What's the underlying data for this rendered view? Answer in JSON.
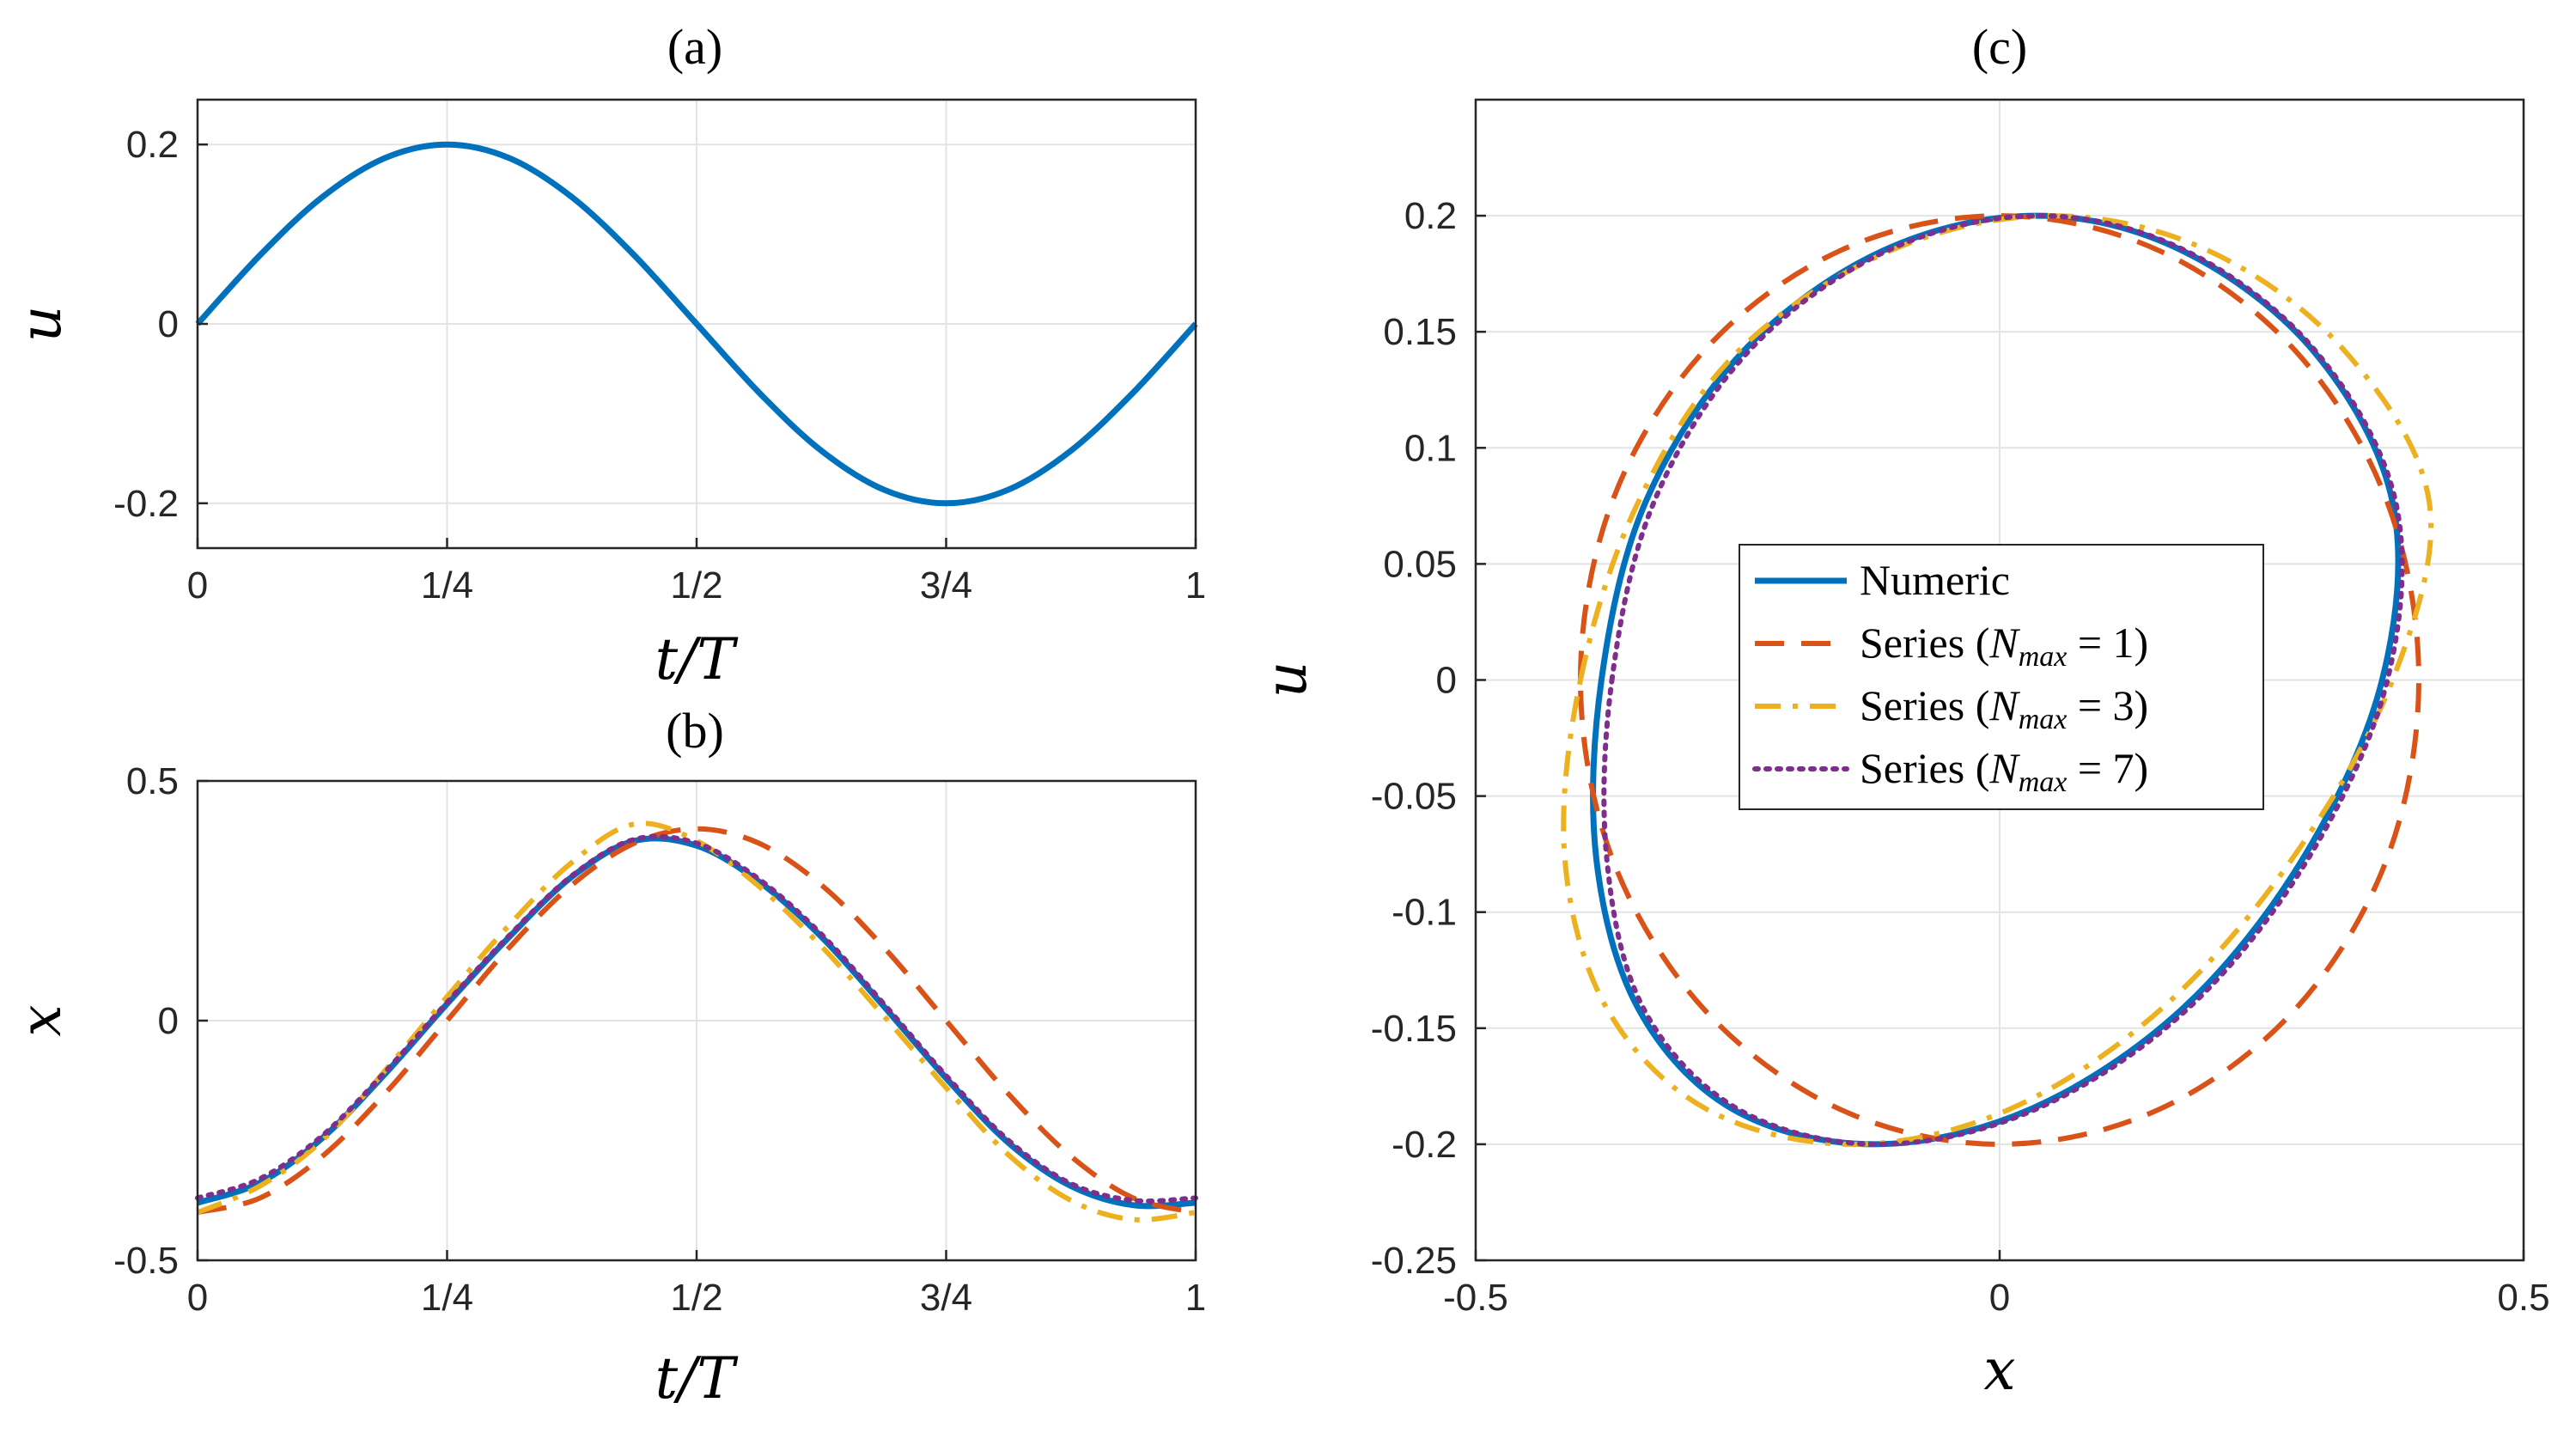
{
  "colors": {
    "numeric": "#0072BD",
    "series1": "#D95319",
    "series3": "#EDB120",
    "series7": "#7E2F8E",
    "grid": "#e3e3e3",
    "axes": "#262626"
  },
  "chart_data": [
    {
      "type": "line",
      "title": "(a)",
      "xlabel": "t/T",
      "ylabel": "u",
      "xlim": [
        0,
        1
      ],
      "ylim": [
        -0.25,
        0.25
      ],
      "grid": true,
      "xticks": [
        0,
        0.25,
        0.5,
        0.75,
        1
      ],
      "xtick_labels": [
        "0",
        "1/4",
        "1/2",
        "3/4",
        "1"
      ],
      "yticks": [
        -0.2,
        0,
        0.2
      ],
      "ytick_labels": [
        "-0.2",
        "0",
        "0.2"
      ],
      "series": [
        {
          "name": "Numeric",
          "style": "solid",
          "x": [
            0,
            0.0625,
            0.125,
            0.1875,
            0.25,
            0.3125,
            0.375,
            0.4375,
            0.5,
            0.5625,
            0.625,
            0.6875,
            0.75,
            0.8125,
            0.875,
            0.9375,
            1
          ],
          "y": [
            0,
            0.0765,
            0.1414,
            0.1848,
            0.2,
            0.1848,
            0.1414,
            0.0765,
            0,
            -0.0765,
            -0.1414,
            -0.1848,
            -0.2,
            -0.1848,
            -0.1414,
            -0.0765,
            0
          ]
        }
      ]
    },
    {
      "type": "line",
      "title": "(b)",
      "xlabel": "t/T",
      "ylabel": "x",
      "xlim": [
        0,
        1
      ],
      "ylim": [
        -0.5,
        0.5
      ],
      "grid": true,
      "xticks": [
        0,
        0.25,
        0.5,
        0.75,
        1
      ],
      "xtick_labels": [
        "0",
        "1/4",
        "1/2",
        "3/4",
        "1"
      ],
      "yticks": [
        -0.5,
        0,
        0.5
      ],
      "ytick_labels": [
        "-0.5",
        "0",
        "0.5"
      ],
      "series": [
        {
          "name": "Numeric",
          "style": "solid",
          "x": [
            0,
            0.0625,
            0.125,
            0.1875,
            0.25,
            0.3125,
            0.375,
            0.4375,
            0.5,
            0.5625,
            0.625,
            0.6875,
            0.75,
            0.8125,
            0.875,
            0.9375,
            1
          ],
          "y": [
            -0.38,
            -0.338,
            -0.245,
            -0.112,
            0.035,
            0.175,
            0.3,
            0.375,
            0.365,
            0.29,
            0.175,
            0.03,
            -0.12,
            -0.255,
            -0.345,
            -0.385,
            -0.38
          ]
        },
        {
          "name": "Series (N_max = 1)",
          "style": "dashed",
          "x": [
            0,
            0.0625,
            0.125,
            0.1875,
            0.25,
            0.3125,
            0.375,
            0.4375,
            0.5,
            0.5625,
            0.625,
            0.6875,
            0.75,
            0.8125,
            0.875,
            0.9375,
            1
          ],
          "y": [
            -0.4,
            -0.37,
            -0.283,
            -0.153,
            0,
            0.153,
            0.283,
            0.37,
            0.4,
            0.37,
            0.283,
            0.153,
            0,
            -0.153,
            -0.283,
            -0.37,
            -0.4
          ]
        },
        {
          "name": "Series (N_max = 3)",
          "style": "dashdot",
          "x": [
            0,
            0.0625,
            0.125,
            0.1875,
            0.25,
            0.3125,
            0.375,
            0.4375,
            0.5,
            0.5625,
            0.625,
            0.6875,
            0.75,
            0.8125,
            0.875,
            0.9375,
            1
          ],
          "y": [
            -0.4,
            -0.345,
            -0.25,
            -0.105,
            0.05,
            0.2,
            0.33,
            0.41,
            0.375,
            0.28,
            0.155,
            0.01,
            -0.14,
            -0.28,
            -0.375,
            -0.415,
            -0.4
          ]
        },
        {
          "name": "Series (N_max = 7)",
          "style": "dotted",
          "x": [
            0,
            0.0625,
            0.125,
            0.1875,
            0.25,
            0.3125,
            0.375,
            0.4375,
            0.5,
            0.5625,
            0.625,
            0.6875,
            0.75,
            0.8125,
            0.875,
            0.9375,
            1
          ],
          "y": [
            -0.37,
            -0.33,
            -0.24,
            -0.108,
            0.038,
            0.178,
            0.302,
            0.378,
            0.37,
            0.295,
            0.18,
            0.035,
            -0.115,
            -0.25,
            -0.34,
            -0.375,
            -0.37
          ]
        }
      ]
    },
    {
      "type": "line",
      "title": "(c)",
      "xlabel": "x",
      "ylabel": "u",
      "xlim": [
        -0.5,
        0.5
      ],
      "ylim": [
        -0.25,
        0.25
      ],
      "grid": true,
      "xticks": [
        -0.5,
        0,
        0.5
      ],
      "xtick_labels": [
        "-0.5",
        "0",
        "0.5"
      ],
      "yticks": [
        -0.25,
        -0.2,
        -0.15,
        -0.1,
        -0.05,
        0,
        0.05,
        0.1,
        0.15,
        0.2
      ],
      "ytick_labels": [
        "-0.25",
        "-0.2",
        "-0.15",
        "-0.1",
        "-0.05",
        "0",
        "0.05",
        "0.1",
        "0.15",
        "0.2"
      ],
      "legend": {
        "placement": "center",
        "entries": [
          {
            "label": "Numeric",
            "style": "solid"
          },
          {
            "label": "Series (",
            "math": "N",
            "sub": "max",
            "rest": " = 1)",
            "style": "dashed"
          },
          {
            "label": "Series (",
            "math": "N",
            "sub": "max",
            "rest": " = 3)",
            "style": "dashdot"
          },
          {
            "label": "Series (",
            "math": "N",
            "sub": "max",
            "rest": " = 7)",
            "style": "dotted"
          }
        ]
      },
      "series": [
        {
          "name": "Numeric",
          "style": "solid",
          "x": [
            -0.38,
            -0.338,
            -0.245,
            -0.112,
            0.035,
            0.175,
            0.3,
            0.375,
            0.365,
            0.29,
            0.175,
            0.03,
            -0.12,
            -0.255,
            -0.345,
            -0.385,
            -0.38
          ],
          "y": [
            0,
            0.0765,
            0.1414,
            0.1848,
            0.2,
            0.1848,
            0.1414,
            0.0765,
            0,
            -0.0765,
            -0.1414,
            -0.1848,
            -0.2,
            -0.1848,
            -0.1414,
            -0.0765,
            0
          ]
        },
        {
          "name": "Series (N_max = 1)",
          "style": "dashed",
          "x": [
            -0.4,
            -0.37,
            -0.283,
            -0.153,
            0,
            0.153,
            0.283,
            0.37,
            0.4,
            0.37,
            0.283,
            0.153,
            0,
            -0.153,
            -0.283,
            -0.37,
            -0.4
          ],
          "y": [
            0,
            0.0765,
            0.1414,
            0.1848,
            0.2,
            0.1848,
            0.1414,
            0.0765,
            0,
            -0.0765,
            -0.1414,
            -0.1848,
            -0.2,
            -0.1848,
            -0.1414,
            -0.0765,
            0
          ]
        },
        {
          "name": "Series (N_max = 3)",
          "style": "dashdot",
          "x": [
            -0.4,
            -0.345,
            -0.25,
            -0.105,
            0.05,
            0.2,
            0.33,
            0.41,
            0.375,
            0.28,
            0.155,
            0.01,
            -0.14,
            -0.28,
            -0.375,
            -0.415,
            -0.4
          ],
          "y": [
            0,
            0.0765,
            0.1414,
            0.1848,
            0.2,
            0.1848,
            0.1414,
            0.0765,
            0,
            -0.0765,
            -0.1414,
            -0.1848,
            -0.2,
            -0.1848,
            -0.1414,
            -0.0765,
            0
          ]
        },
        {
          "name": "Series (N_max = 7)",
          "style": "dotted",
          "x": [
            -0.37,
            -0.33,
            -0.24,
            -0.108,
            0.038,
            0.178,
            0.302,
            0.378,
            0.37,
            0.295,
            0.18,
            0.035,
            -0.115,
            -0.25,
            -0.34,
            -0.375,
            -0.37
          ],
          "y": [
            0,
            0.0765,
            0.1414,
            0.1848,
            0.2,
            0.1848,
            0.1414,
            0.0765,
            0,
            -0.0765,
            -0.1414,
            -0.1848,
            -0.2,
            -0.1848,
            -0.1414,
            -0.0765,
            0
          ]
        }
      ]
    }
  ]
}
